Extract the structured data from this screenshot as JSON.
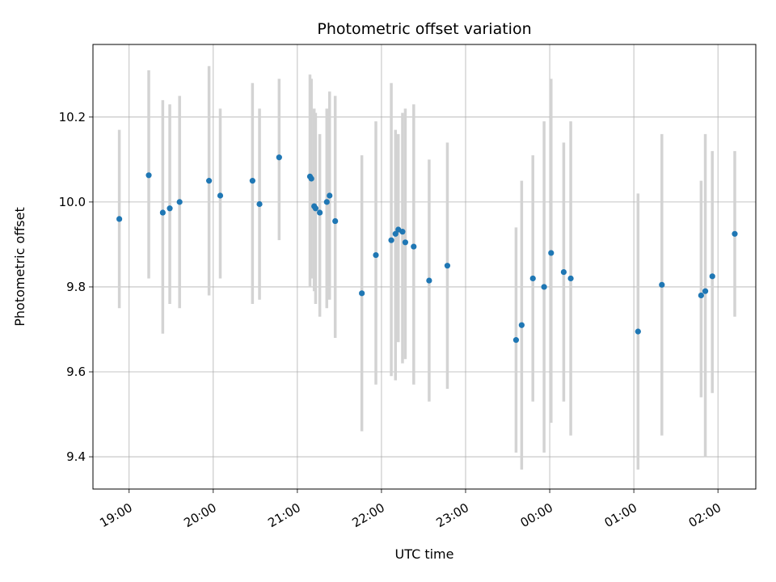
{
  "figure": {
    "background": "#ffffff"
  },
  "chart_data": {
    "type": "scatter",
    "title": "Photometric offset variation",
    "xlabel": "UTC time",
    "ylabel": "Photometric offset",
    "x_ticks": [
      "19:00",
      "20:00",
      "21:00",
      "22:00",
      "23:00",
      "00:00",
      "01:00",
      "02:00"
    ],
    "y_ticks": [
      9.4,
      9.6,
      9.8,
      10.0,
      10.2
    ],
    "xlim_hours": [
      18.57,
      26.45
    ],
    "ylim": [
      9.324,
      10.371
    ],
    "grid": true,
    "legend": "none",
    "point_color": "#1f77b4",
    "errorbar_color": "#d3d3d3",
    "grid_color": "#b0b0b0",
    "points": [
      {
        "t": "18:53",
        "y": 9.96,
        "lo": 9.75,
        "hi": 10.17
      },
      {
        "t": "19:14",
        "y": 10.063,
        "lo": 9.82,
        "hi": 10.31
      },
      {
        "t": "19:24",
        "y": 9.975,
        "lo": 9.69,
        "hi": 10.24
      },
      {
        "t": "19:29",
        "y": 9.985,
        "lo": 9.76,
        "hi": 10.23
      },
      {
        "t": "19:36",
        "y": 10.0,
        "lo": 9.75,
        "hi": 10.25
      },
      {
        "t": "19:57",
        "y": 10.05,
        "lo": 9.78,
        "hi": 10.32
      },
      {
        "t": "20:05",
        "y": 10.015,
        "lo": 9.82,
        "hi": 10.22
      },
      {
        "t": "20:28",
        "y": 10.05,
        "lo": 9.76,
        "hi": 10.28
      },
      {
        "t": "20:33",
        "y": 9.995,
        "lo": 9.77,
        "hi": 10.22
      },
      {
        "t": "20:47",
        "y": 10.105,
        "lo": 9.91,
        "hi": 10.29
      },
      {
        "t": "21:09",
        "y": 10.06,
        "lo": 9.8,
        "hi": 10.3
      },
      {
        "t": "21:10",
        "y": 10.055,
        "lo": 9.82,
        "hi": 10.29
      },
      {
        "t": "21:12",
        "y": 9.99,
        "lo": 9.79,
        "hi": 10.22
      },
      {
        "t": "21:13",
        "y": 9.985,
        "lo": 9.76,
        "hi": 10.21
      },
      {
        "t": "21:16",
        "y": 9.975,
        "lo": 9.73,
        "hi": 10.16
      },
      {
        "t": "21:21",
        "y": 10.0,
        "lo": 9.75,
        "hi": 10.22
      },
      {
        "t": "21:23",
        "y": 10.015,
        "lo": 9.77,
        "hi": 10.26
      },
      {
        "t": "21:27",
        "y": 9.955,
        "lo": 9.68,
        "hi": 10.25
      },
      {
        "t": "21:46",
        "y": 9.785,
        "lo": 9.46,
        "hi": 10.11
      },
      {
        "t": "21:56",
        "y": 9.875,
        "lo": 9.57,
        "hi": 10.19
      },
      {
        "t": "22:07",
        "y": 9.91,
        "lo": 9.59,
        "hi": 10.28
      },
      {
        "t": "22:10",
        "y": 9.925,
        "lo": 9.58,
        "hi": 10.17
      },
      {
        "t": "22:12",
        "y": 9.935,
        "lo": 9.67,
        "hi": 10.16
      },
      {
        "t": "22:15",
        "y": 9.93,
        "lo": 9.62,
        "hi": 10.21
      },
      {
        "t": "22:17",
        "y": 9.905,
        "lo": 9.63,
        "hi": 10.22
      },
      {
        "t": "22:23",
        "y": 9.895,
        "lo": 9.57,
        "hi": 10.23
      },
      {
        "t": "22:34",
        "y": 9.815,
        "lo": 9.53,
        "hi": 10.1
      },
      {
        "t": "22:47",
        "y": 9.85,
        "lo": 9.56,
        "hi": 10.14
      },
      {
        "t": "23:36",
        "y": 9.675,
        "lo": 9.41,
        "hi": 9.94
      },
      {
        "t": "23:40",
        "y": 9.71,
        "lo": 9.37,
        "hi": 10.05
      },
      {
        "t": "23:48",
        "y": 9.82,
        "lo": 9.53,
        "hi": 10.11
      },
      {
        "t": "23:56",
        "y": 9.8,
        "lo": 9.41,
        "hi": 10.19
      },
      {
        "t": "00:01",
        "y": 9.88,
        "lo": 9.48,
        "hi": 10.29
      },
      {
        "t": "00:10",
        "y": 9.835,
        "lo": 9.53,
        "hi": 10.14
      },
      {
        "t": "00:15",
        "y": 9.82,
        "lo": 9.45,
        "hi": 10.19
      },
      {
        "t": "01:03",
        "y": 9.695,
        "lo": 9.37,
        "hi": 10.02
      },
      {
        "t": "01:20",
        "y": 9.805,
        "lo": 9.45,
        "hi": 10.16
      },
      {
        "t": "01:48",
        "y": 9.78,
        "lo": 9.54,
        "hi": 10.05
      },
      {
        "t": "01:51",
        "y": 9.79,
        "lo": 9.4,
        "hi": 10.16
      },
      {
        "t": "01:56",
        "y": 9.825,
        "lo": 9.55,
        "hi": 10.12
      },
      {
        "t": "02:12",
        "y": 9.925,
        "lo": 9.73,
        "hi": 10.12
      }
    ]
  }
}
